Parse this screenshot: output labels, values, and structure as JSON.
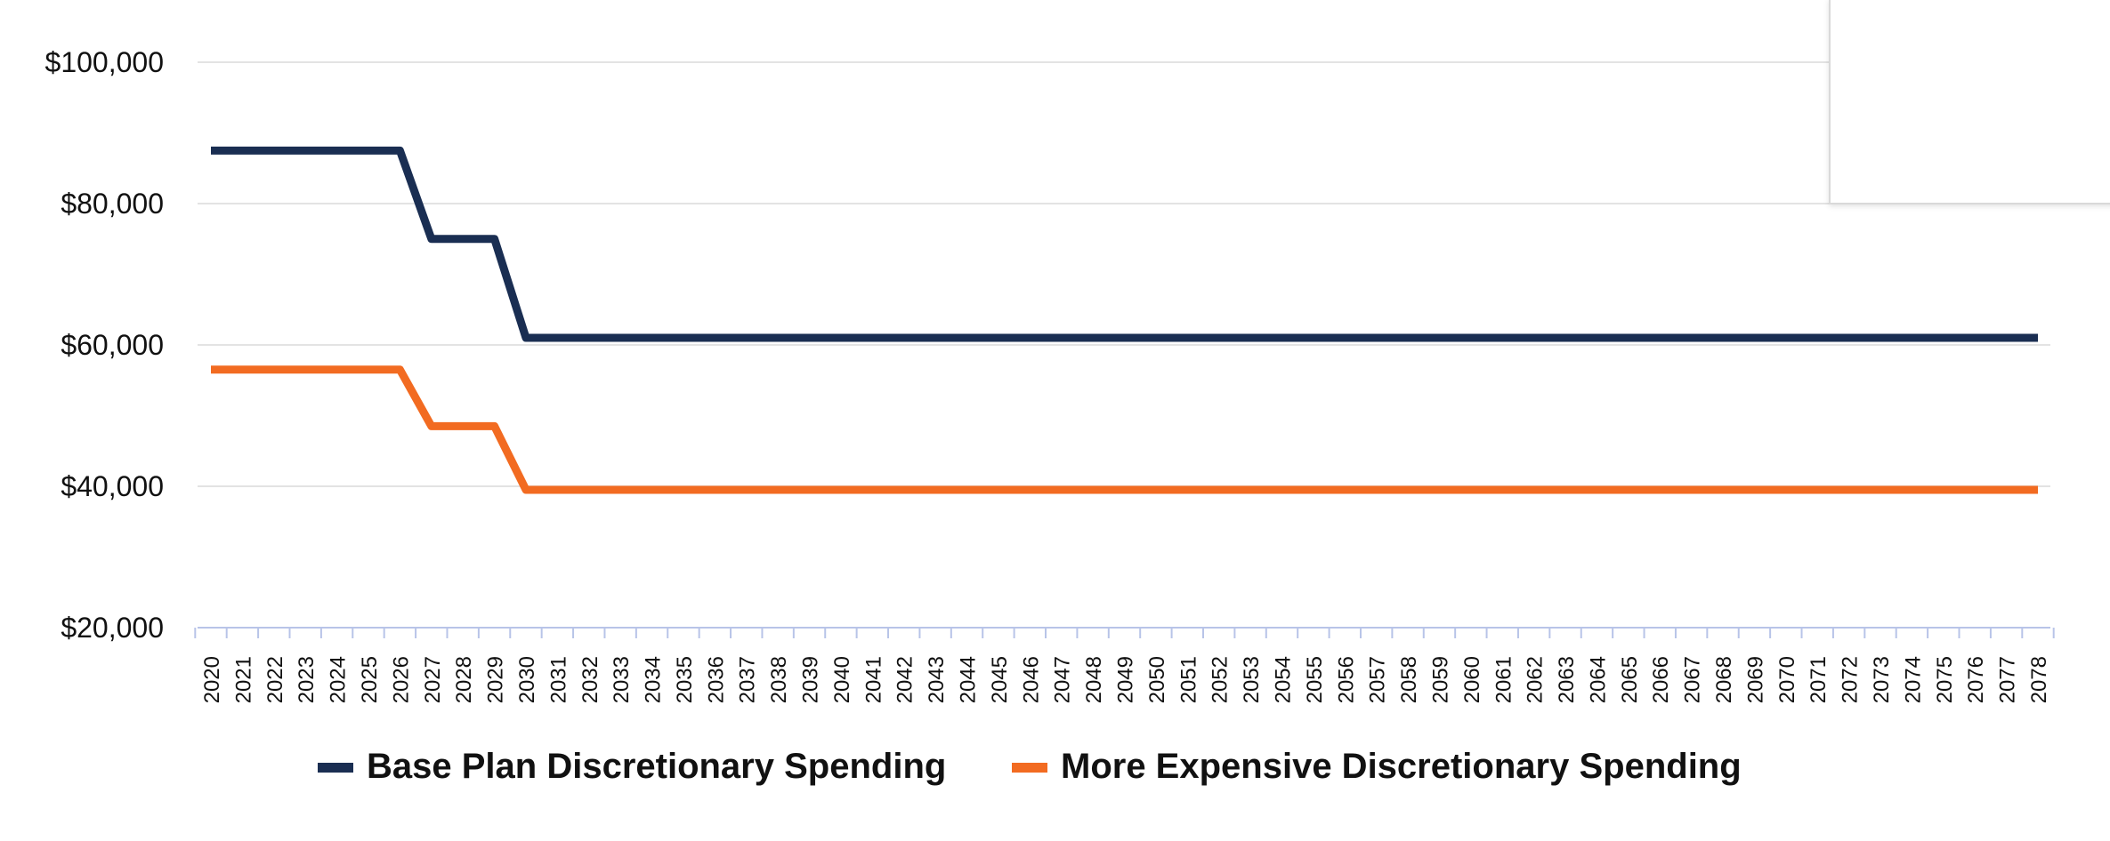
{
  "chart_data": {
    "type": "line",
    "title": "",
    "xlabel": "",
    "ylabel": "",
    "x": [
      "2020",
      "2021",
      "2022",
      "2023",
      "2024",
      "2025",
      "2026",
      "2027",
      "2028",
      "2029",
      "2030",
      "2031",
      "2032",
      "2033",
      "2034",
      "2035",
      "2036",
      "2037",
      "2038",
      "2039",
      "2040",
      "2041",
      "2042",
      "2043",
      "2044",
      "2045",
      "2046",
      "2047",
      "2048",
      "2049",
      "2050",
      "2051",
      "2052",
      "2053",
      "2054",
      "2055",
      "2056",
      "2057",
      "2058",
      "2059",
      "2060",
      "2061",
      "2062",
      "2063",
      "2064",
      "2065",
      "2066",
      "2067",
      "2068",
      "2069",
      "2070",
      "2071",
      "2072",
      "2073",
      "2074",
      "2075",
      "2076",
      "2077",
      "2078"
    ],
    "y_ticks": [
      20000,
      40000,
      60000,
      80000,
      100000
    ],
    "y_tick_labels": [
      "$20,000",
      "$40,000",
      "$60,000",
      "$80,000",
      "$100,000"
    ],
    "ylim": [
      20000,
      104000
    ],
    "grid": true,
    "legend_position": "bottom",
    "series": [
      {
        "name": "Base Plan Discretionary Spending",
        "color": "#1a2e52",
        "values": [
          87500,
          87500,
          87500,
          87500,
          87500,
          87500,
          87500,
          75000,
          75000,
          75000,
          61000,
          61000,
          61000,
          61000,
          61000,
          61000,
          61000,
          61000,
          61000,
          61000,
          61000,
          61000,
          61000,
          61000,
          61000,
          61000,
          61000,
          61000,
          61000,
          61000,
          61000,
          61000,
          61000,
          61000,
          61000,
          61000,
          61000,
          61000,
          61000,
          61000,
          61000,
          61000,
          61000,
          61000,
          61000,
          61000,
          61000,
          61000,
          61000,
          61000,
          61000,
          61000,
          61000,
          61000,
          61000,
          61000,
          61000,
          61000,
          61000
        ]
      },
      {
        "name": "More Expensive Discretionary Spending",
        "color": "#f26b21",
        "values": [
          56500,
          56500,
          56500,
          56500,
          56500,
          56500,
          56500,
          48500,
          48500,
          48500,
          39500,
          39500,
          39500,
          39500,
          39500,
          39500,
          39500,
          39500,
          39500,
          39500,
          39500,
          39500,
          39500,
          39500,
          39500,
          39500,
          39500,
          39500,
          39500,
          39500,
          39500,
          39500,
          39500,
          39500,
          39500,
          39500,
          39500,
          39500,
          39500,
          39500,
          39500,
          39500,
          39500,
          39500,
          39500,
          39500,
          39500,
          39500,
          39500,
          39500,
          39500,
          39500,
          39500,
          39500,
          39500,
          39500,
          39500,
          39500,
          39500
        ]
      }
    ]
  },
  "colors": {
    "gridline": "#e3e3e3",
    "axis": "#b8c4e8",
    "text": "#111111"
  }
}
